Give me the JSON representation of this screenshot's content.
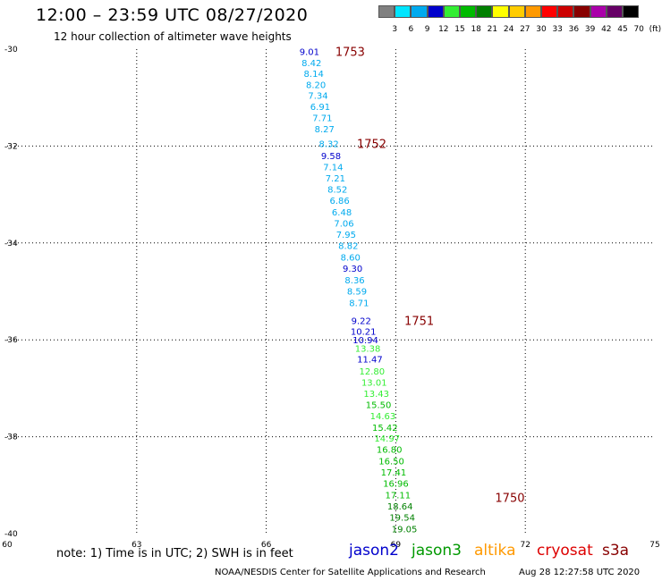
{
  "header": {
    "title": "12:00 – 23:59 UTC 08/27/2020",
    "subtitle": "12 hour collection of altimeter wave heights"
  },
  "colorbar": {
    "labels": [
      "3",
      "6",
      "9",
      "12",
      "15",
      "18",
      "21",
      "24",
      "27",
      "30",
      "33",
      "36",
      "39",
      "42",
      "45",
      "70",
      "(ft)"
    ],
    "colors": [
      "#808080",
      "#00e5ff",
      "#00aaee",
      "#0000cc",
      "#33ee33",
      "#00bb00",
      "#008000",
      "#ffff00",
      "#ffcc00",
      "#ff9900",
      "#ff0000",
      "#cc0000",
      "#880000",
      "#aa00aa",
      "#660066",
      "#000000"
    ]
  },
  "chart_data": {
    "type": "scatter",
    "x_ticks": [
      "60",
      "63",
      "66",
      "69",
      "72",
      "75"
    ],
    "y_ticks": [
      "-30",
      "-32",
      "-34",
      "-36",
      "-38",
      "-40"
    ],
    "xlim": [
      60,
      75
    ],
    "ylim": [
      -40,
      -30
    ],
    "grid": true,
    "orbit_labels": [
      {
        "text": "1753",
        "lon": 67.6,
        "lat": -30.05
      },
      {
        "text": "1752",
        "lon": 68.1,
        "lat": -31.95
      },
      {
        "text": "1751",
        "lon": 69.2,
        "lat": -35.6
      },
      {
        "text": "1750",
        "lon": 71.3,
        "lat": -39.25
      }
    ],
    "points": [
      {
        "v": "9.01",
        "lon": 67.0,
        "lat": -30.05,
        "c": "#0000cc"
      },
      {
        "v": "8.42",
        "lon": 67.05,
        "lat": -30.28,
        "c": "#00aaee"
      },
      {
        "v": "8.14",
        "lon": 67.1,
        "lat": -30.5,
        "c": "#00aaee"
      },
      {
        "v": "8.20",
        "lon": 67.15,
        "lat": -30.73,
        "c": "#00aaee"
      },
      {
        "v": "7.34",
        "lon": 67.2,
        "lat": -30.95,
        "c": "#00aaee"
      },
      {
        "v": "6.91",
        "lon": 67.25,
        "lat": -31.18,
        "c": "#00aaee"
      },
      {
        "v": "7.71",
        "lon": 67.3,
        "lat": -31.41,
        "c": "#00aaee"
      },
      {
        "v": "8.27",
        "lon": 67.35,
        "lat": -31.64,
        "c": "#00aaee"
      },
      {
        "v": "8.32",
        "lon": 67.45,
        "lat": -31.95,
        "c": "#00aaee"
      },
      {
        "v": "9.58",
        "lon": 67.5,
        "lat": -32.2,
        "c": "#0000cc"
      },
      {
        "v": "7.14",
        "lon": 67.55,
        "lat": -32.43,
        "c": "#00aaee"
      },
      {
        "v": "7.21",
        "lon": 67.6,
        "lat": -32.66,
        "c": "#00aaee"
      },
      {
        "v": "8.52",
        "lon": 67.65,
        "lat": -32.89,
        "c": "#00aaee"
      },
      {
        "v": "6.86",
        "lon": 67.7,
        "lat": -33.12,
        "c": "#00aaee"
      },
      {
        "v": "6.48",
        "lon": 67.75,
        "lat": -33.36,
        "c": "#00aaee"
      },
      {
        "v": "7.06",
        "lon": 67.8,
        "lat": -33.59,
        "c": "#00aaee"
      },
      {
        "v": "7.95",
        "lon": 67.85,
        "lat": -33.82,
        "c": "#00aaee"
      },
      {
        "v": "8.82",
        "lon": 67.9,
        "lat": -34.05,
        "c": "#00aaee"
      },
      {
        "v": "8.60",
        "lon": 67.95,
        "lat": -34.29,
        "c": "#00aaee"
      },
      {
        "v": "9.30",
        "lon": 68.0,
        "lat": -34.52,
        "c": "#0000cc"
      },
      {
        "v": "8.36",
        "lon": 68.05,
        "lat": -34.76,
        "c": "#00aaee"
      },
      {
        "v": "8.59",
        "lon": 68.1,
        "lat": -34.99,
        "c": "#00aaee"
      },
      {
        "v": "8.71",
        "lon": 68.15,
        "lat": -35.23,
        "c": "#00aaee"
      },
      {
        "v": "9.22",
        "lon": 68.2,
        "lat": -35.6,
        "c": "#0000cc"
      },
      {
        "v": "10.21",
        "lon": 68.25,
        "lat": -35.82,
        "c": "#0000cc"
      },
      {
        "v": "10.94",
        "lon": 68.3,
        "lat": -36.0,
        "c": "#0000cc"
      },
      {
        "v": "13.38",
        "lon": 68.35,
        "lat": -36.17,
        "c": "#33ee33"
      },
      {
        "v": "11.47",
        "lon": 68.4,
        "lat": -36.39,
        "c": "#0000cc"
      },
      {
        "v": "12.80",
        "lon": 68.45,
        "lat": -36.64,
        "c": "#33ee33"
      },
      {
        "v": "13.01",
        "lon": 68.5,
        "lat": -36.87,
        "c": "#33ee33"
      },
      {
        "v": "13.43",
        "lon": 68.55,
        "lat": -37.1,
        "c": "#33ee33"
      },
      {
        "v": "15.50",
        "lon": 68.6,
        "lat": -37.33,
        "c": "#00bb00"
      },
      {
        "v": "14.63",
        "lon": 68.7,
        "lat": -37.56,
        "c": "#33ee33"
      },
      {
        "v": "15.42",
        "lon": 68.75,
        "lat": -37.8,
        "c": "#00bb00"
      },
      {
        "v": "14.97",
        "lon": 68.8,
        "lat": -38.03,
        "c": "#33ee33"
      },
      {
        "v": "16.80",
        "lon": 68.85,
        "lat": -38.26,
        "c": "#00bb00"
      },
      {
        "v": "16.50",
        "lon": 68.9,
        "lat": -38.5,
        "c": "#00bb00"
      },
      {
        "v": "17.41",
        "lon": 68.95,
        "lat": -38.73,
        "c": "#00bb00"
      },
      {
        "v": "16.96",
        "lon": 69.0,
        "lat": -38.96,
        "c": "#00bb00"
      },
      {
        "v": "17.11",
        "lon": 69.05,
        "lat": -39.2,
        "c": "#00bb00"
      },
      {
        "v": "18.64",
        "lon": 69.1,
        "lat": -39.43,
        "c": "#008000"
      },
      {
        "v": "19.54",
        "lon": 69.15,
        "lat": -39.66,
        "c": "#008000"
      },
      {
        "v": "19.05",
        "lon": 69.2,
        "lat": -39.9,
        "c": "#008000"
      }
    ]
  },
  "note": "note: 1) Time is in UTC; 2) SWH is in feet",
  "legend": [
    {
      "name": "jason2",
      "color": "#0000cc"
    },
    {
      "name": "jason3",
      "color": "#009900"
    },
    {
      "name": "altika",
      "color": "#ff9900"
    },
    {
      "name": "cryosat",
      "color": "#dd0000"
    },
    {
      "name": "s3a",
      "color": "#880000"
    }
  ],
  "footer": {
    "credit": "NOAA/NESDIS Center for Satellite Applications and Research",
    "timestamp": "Aug 28 12:27:58 UTC 2020"
  }
}
